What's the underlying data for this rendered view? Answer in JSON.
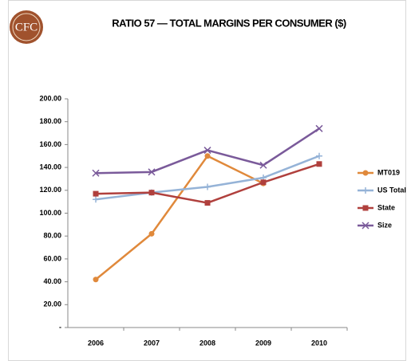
{
  "logo": "CFC",
  "chart_data": {
    "type": "line",
    "title": "RATIO 57 — TOTAL MARGINS PER CONSUMER ($)",
    "categories": [
      "2006",
      "2007",
      "2008",
      "2009",
      "2010"
    ],
    "series": [
      {
        "name": "MT019",
        "color": "#e0893b",
        "marker": "circle",
        "values": [
          42,
          82,
          150,
          126,
          null
        ]
      },
      {
        "name": "US Total",
        "color": "#95b3d7",
        "marker": "plus",
        "values": [
          112,
          118,
          123,
          131,
          150
        ]
      },
      {
        "name": "State",
        "color": "#b0403d",
        "marker": "square",
        "values": [
          117,
          118,
          109,
          127,
          143
        ]
      },
      {
        "name": "Size",
        "color": "#7a5a9a",
        "marker": "x",
        "values": [
          135,
          136,
          155,
          142,
          174
        ]
      }
    ],
    "ylim": [
      0,
      200
    ],
    "yticks": [
      {
        "value": 0,
        "label": "-"
      },
      {
        "value": 20,
        "label": "20.00"
      },
      {
        "value": 40,
        "label": "40.00"
      },
      {
        "value": 60,
        "label": "60.00"
      },
      {
        "value": 80,
        "label": "80.00"
      },
      {
        "value": 100,
        "label": "100.00"
      },
      {
        "value": 120,
        "label": "120.00"
      },
      {
        "value": 140,
        "label": "140.00"
      },
      {
        "value": 160,
        "label": "160.00"
      },
      {
        "value": 180,
        "label": "180.00"
      },
      {
        "value": 200,
        "label": "200.00"
      }
    ],
    "legend": "right"
  }
}
